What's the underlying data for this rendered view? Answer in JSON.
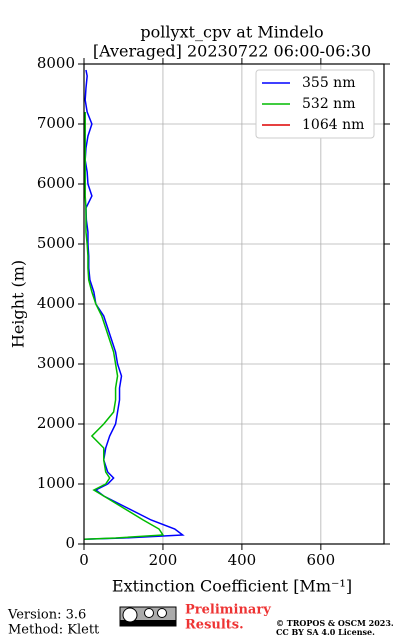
{
  "chart_data": {
    "type": "line",
    "title": [
      "pollyxt_cpv at Mindelo",
      "[Averaged] 20230722 06:00-06:30"
    ],
    "x_label": "Extinction Coefficient [Mm⁻¹]",
    "y_label": "Height (m)",
    "xlim": [
      0,
      760
    ],
    "xticks": [
      0,
      200,
      400,
      600
    ],
    "ylim": [
      0,
      8000
    ],
    "yticks": [
      0,
      1000,
      2000,
      3000,
      4000,
      5000,
      6000,
      7000,
      8000
    ],
    "grid": true,
    "legend": "upper right",
    "heights": [
      80,
      100,
      150,
      250,
      400,
      600,
      800,
      900,
      1000,
      1100,
      1200,
      1400,
      1600,
      1800,
      2000,
      2200,
      2400,
      2600,
      2800,
      3000,
      3200,
      3400,
      3600,
      3800,
      4000,
      4200,
      4400,
      4600,
      4800,
      5000,
      5200,
      5400,
      5600,
      5800,
      6000,
      6200,
      6400,
      6600,
      6800,
      7000,
      7200,
      7400,
      7600,
      7800,
      7900
    ],
    "series": [
      {
        "name": "355 nm",
        "color": "#0000ff",
        "values": [
          0,
          100,
          250,
          230,
          170,
          110,
          50,
          30,
          60,
          75,
          60,
          50,
          55,
          65,
          80,
          85,
          90,
          90,
          95,
          85,
          80,
          70,
          60,
          50,
          30,
          25,
          15,
          12,
          12,
          10,
          10,
          6,
          5,
          20,
          10,
          8,
          3,
          5,
          10,
          20,
          8,
          3,
          5,
          8,
          5
        ]
      },
      {
        "name": "532 nm",
        "color": "#00bb00",
        "values": [
          0,
          80,
          200,
          190,
          150,
          100,
          50,
          25,
          55,
          65,
          55,
          50,
          50,
          20,
          50,
          75,
          80,
          80,
          85,
          80,
          75,
          65,
          55,
          45,
          30,
          20,
          12,
          10,
          10,
          8,
          5,
          5,
          5,
          3,
          3,
          3,
          3,
          3,
          3,
          3,
          3,
          null,
          null,
          null,
          null
        ]
      },
      {
        "name": "1064 nm",
        "color": "#dd0000",
        "values": [
          null,
          null,
          null,
          null,
          null,
          null,
          null,
          null,
          null,
          null,
          null,
          null,
          null,
          null,
          null,
          null,
          null,
          null,
          null,
          null,
          null,
          null,
          null,
          null,
          null,
          null,
          null,
          null,
          null,
          null,
          null,
          null,
          null,
          null,
          null,
          null,
          null,
          null,
          null,
          null,
          null,
          null,
          null,
          null,
          null
        ]
      }
    ]
  },
  "footer": {
    "version": "Version: 3.6",
    "method": "Method: Klett",
    "preliminary": [
      "Preliminary",
      "Results."
    ],
    "copyright": [
      "© TROPOS & OSCM 2023.",
      "CC BY SA 4.0 License."
    ]
  }
}
